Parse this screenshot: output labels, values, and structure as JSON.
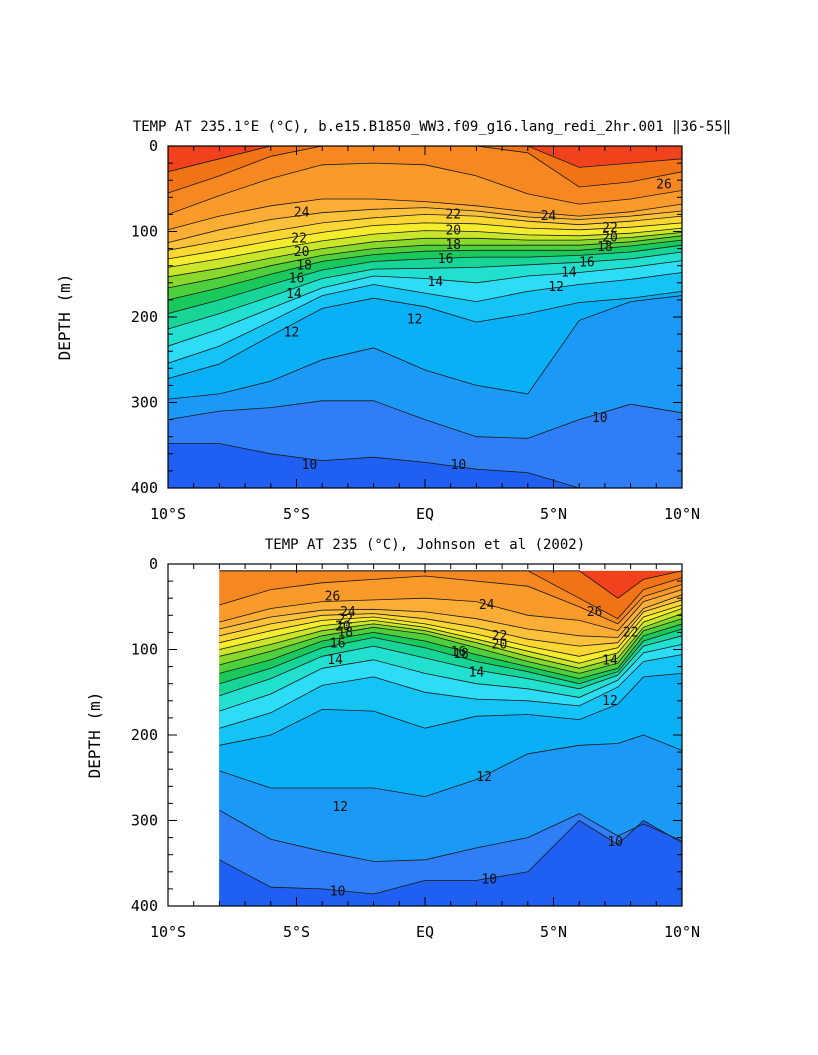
{
  "chart_data": [
    {
      "type": "heatmap",
      "subtype": "filled-contour depth section",
      "title": "TEMP AT 235.1°E (°C), b.e15.B1850_WW3.f09_g16.lang_redi_2hr.001 ‖36-55‖",
      "xlabel": "",
      "ylabel": "DEPTH (m)",
      "x_ticks": [
        "10°S",
        "5°S",
        "EQ",
        "5°N",
        "10°N"
      ],
      "x_tick_values": [
        -10,
        -5,
        0,
        5,
        10
      ],
      "xlim": [
        -10,
        10
      ],
      "y_ticks": [
        "0",
        "100",
        "200",
        "300",
        "400"
      ],
      "y_tick_values": [
        0,
        100,
        200,
        300,
        400
      ],
      "ylim": [
        0,
        400
      ],
      "y_inverted": true,
      "data_start_lat": -10,
      "contour_levels": [
        9,
        10,
        11,
        12,
        13,
        14,
        15,
        16,
        17,
        18,
        19,
        20,
        21,
        22,
        23,
        24,
        25,
        26,
        27
      ],
      "contour_labels": [
        {
          "text": "26",
          "x": 9.3,
          "y": 45
        },
        {
          "text": "24",
          "x": -4.8,
          "y": 78
        },
        {
          "text": "24",
          "x": 4.8,
          "y": 82
        },
        {
          "text": "22",
          "x": -4.9,
          "y": 108
        },
        {
          "text": "22",
          "x": 1.1,
          "y": 80
        },
        {
          "text": "22",
          "x": 7.2,
          "y": 96
        },
        {
          "text": "20",
          "x": -4.8,
          "y": 124
        },
        {
          "text": "20",
          "x": 1.1,
          "y": 99
        },
        {
          "text": "20",
          "x": 7.2,
          "y": 107
        },
        {
          "text": "18",
          "x": -4.7,
          "y": 140
        },
        {
          "text": "18",
          "x": 1.1,
          "y": 116
        },
        {
          "text": "18",
          "x": 7.0,
          "y": 118
        },
        {
          "text": "16",
          "x": -5.0,
          "y": 155
        },
        {
          "text": "16",
          "x": 0.8,
          "y": 132
        },
        {
          "text": "16",
          "x": 6.3,
          "y": 136
        },
        {
          "text": "14",
          "x": -5.1,
          "y": 173
        },
        {
          "text": "14",
          "x": 0.4,
          "y": 159
        },
        {
          "text": "14",
          "x": 5.6,
          "y": 148
        },
        {
          "text": "12",
          "x": -5.2,
          "y": 218
        },
        {
          "text": "12",
          "x": -0.4,
          "y": 203
        },
        {
          "text": "12",
          "x": 5.1,
          "y": 165
        },
        {
          "text": "10",
          "x": -4.5,
          "y": 373
        },
        {
          "text": "10",
          "x": 1.3,
          "y": 373
        },
        {
          "text": "10",
          "x": 6.8,
          "y": 318
        }
      ],
      "isotherm_depths": {
        "lat": [
          -10,
          -8,
          -6,
          -4,
          -2,
          0,
          2,
          4,
          6,
          8,
          10
        ],
        "27": [
          30,
          15,
          0,
          0,
          0,
          0,
          0,
          0,
          25,
          20,
          15
        ],
        "26": [
          55,
          35,
          12,
          0,
          0,
          0,
          0,
          8,
          48,
          42,
          30
        ],
        "25": [
          80,
          58,
          38,
          22,
          20,
          22,
          35,
          56,
          68,
          62,
          52
        ],
        "24": [
          98,
          82,
          70,
          62,
          62,
          65,
          70,
          77,
          82,
          77,
          68
        ],
        "23": [
          113,
          98,
          86,
          78,
          74,
          72,
          76,
          83,
          86,
          82,
          76
        ],
        "22": [
          122,
          111,
          100,
          90,
          84,
          80,
          82,
          88,
          92,
          88,
          82
        ],
        "21": [
          132,
          122,
          111,
          101,
          93,
          90,
          91,
          96,
          98,
          95,
          90
        ],
        "20": [
          142,
          132,
          121,
          111,
          103,
          99,
          100,
          104,
          105,
          102,
          96
        ],
        "19": [
          153,
          143,
          131,
          120,
          112,
          108,
          108,
          110,
          110,
          107,
          101
        ],
        "18": [
          166,
          154,
          140,
          128,
          120,
          116,
          116,
          116,
          116,
          112,
          105
        ],
        "17": [
          180,
          166,
          150,
          135,
          127,
          123,
          122,
          122,
          122,
          117,
          110
        ],
        "16": [
          196,
          180,
          162,
          145,
          135,
          132,
          130,
          130,
          128,
          124,
          116
        ],
        "15": [
          214,
          196,
          176,
          155,
          144,
          143,
          142,
          139,
          136,
          132,
          124
        ],
        "14": [
          234,
          214,
          190,
          166,
          152,
          155,
          160,
          152,
          148,
          142,
          134
        ],
        "13": [
          254,
          234,
          205,
          175,
          162,
          172,
          182,
          170,
          162,
          156,
          148
        ],
        "12": [
          272,
          255,
          222,
          190,
          178,
          188,
          206,
          196,
          183,
          178,
          170
        ],
        "11": [
          296,
          290,
          275,
          250,
          236,
          262,
          280,
          290,
          204,
          182,
          175
        ],
        "10": [
          320,
          310,
          306,
          298,
          298,
          320,
          340,
          342,
          320,
          302,
          312
        ],
        "9": [
          348,
          348,
          360,
          368,
          364,
          370,
          378,
          382,
          400,
          400,
          400
        ]
      }
    },
    {
      "type": "heatmap",
      "subtype": "filled-contour depth section",
      "title": "TEMP AT 235 (°C), Johnson et al (2002)",
      "xlabel": "",
      "ylabel": "DEPTH (m)",
      "x_ticks": [
        "10°S",
        "5°S",
        "EQ",
        "5°N",
        "10°N"
      ],
      "x_tick_values": [
        -10,
        -5,
        0,
        5,
        10
      ],
      "xlim": [
        -10,
        10
      ],
      "y_ticks": [
        "0",
        "100",
        "200",
        "300",
        "400"
      ],
      "y_tick_values": [
        0,
        100,
        200,
        300,
        400
      ],
      "ylim": [
        0,
        400
      ],
      "y_inverted": true,
      "data_start_lat": -8,
      "data_top_depth": 8,
      "contour_levels": [
        9,
        10,
        11,
        12,
        13,
        14,
        15,
        16,
        17,
        18,
        19,
        20,
        21,
        22,
        23,
        24,
        25,
        26,
        27
      ],
      "contour_labels": [
        {
          "text": "26",
          "x": -3.6,
          "y": 38
        },
        {
          "text": "24",
          "x": -3.0,
          "y": 56
        },
        {
          "text": "24",
          "x": 2.4,
          "y": 48
        },
        {
          "text": "22",
          "x": -3.1,
          "y": 65
        },
        {
          "text": "22",
          "x": 2.9,
          "y": 84
        },
        {
          "text": "20",
          "x": -3.2,
          "y": 73
        },
        {
          "text": "20",
          "x": 2.9,
          "y": 94
        },
        {
          "text": "18",
          "x": -3.1,
          "y": 80
        },
        {
          "text": "18",
          "x": 1.4,
          "y": 105
        },
        {
          "text": "16",
          "x": 1.3,
          "y": 103
        },
        {
          "text": "16",
          "x": -3.4,
          "y": 93
        },
        {
          "text": "14",
          "x": -3.5,
          "y": 112
        },
        {
          "text": "14",
          "x": 2.0,
          "y": 127
        },
        {
          "text": "14",
          "x": 7.2,
          "y": 113
        },
        {
          "text": "12",
          "x": 7.2,
          "y": 160
        },
        {
          "text": "12",
          "x": 2.3,
          "y": 249
        },
        {
          "text": "12",
          "x": -3.3,
          "y": 284
        },
        {
          "text": "10",
          "x": -3.4,
          "y": 383
        },
        {
          "text": "10",
          "x": 2.5,
          "y": 369
        },
        {
          "text": "10",
          "x": 7.4,
          "y": 325
        },
        {
          "text": "26",
          "x": 6.6,
          "y": 56
        },
        {
          "text": "22",
          "x": 8.0,
          "y": 80
        }
      ],
      "isotherm_depths": {
        "lat": [
          -8,
          -6,
          -4,
          -2,
          0,
          2,
          4,
          6,
          7.5,
          8.5,
          10
        ],
        "27": [
          0,
          0,
          0,
          0,
          0,
          0,
          0,
          8,
          40,
          18,
          8
        ],
        "26": [
          0,
          0,
          0,
          0,
          0,
          0,
          0,
          40,
          64,
          30,
          16
        ],
        "25": [
          48,
          30,
          22,
          18,
          14,
          20,
          26,
          50,
          70,
          38,
          24
        ],
        "24": [
          68,
          52,
          44,
          42,
          40,
          44,
          60,
          66,
          78,
          44,
          30
        ],
        "23": [
          76,
          62,
          54,
          53,
          56,
          64,
          76,
          84,
          86,
          52,
          36
        ],
        "22": [
          84,
          70,
          60,
          58,
          64,
          74,
          88,
          96,
          92,
          56,
          42
        ],
        "21": [
          92,
          78,
          66,
          62,
          70,
          82,
          96,
          108,
          98,
          62,
          48
        ],
        "20": [
          100,
          86,
          72,
          66,
          74,
          88,
          102,
          116,
          104,
          68,
          52
        ],
        "19": [
          108,
          94,
          78,
          70,
          78,
          92,
          108,
          122,
          110,
          74,
          58
        ],
        "18": [
          118,
          102,
          84,
          74,
          82,
          98,
          114,
          128,
          116,
          78,
          64
        ],
        "17": [
          128,
          112,
          90,
          80,
          90,
          106,
          120,
          134,
          122,
          84,
          70
        ],
        "16": [
          140,
          122,
          98,
          86,
          98,
          114,
          126,
          140,
          126,
          90,
          76
        ],
        "15": [
          154,
          134,
          108,
          96,
          110,
          124,
          134,
          146,
          130,
          96,
          84
        ],
        "14": [
          172,
          152,
          122,
          112,
          128,
          140,
          146,
          156,
          136,
          104,
          94
        ],
        "13": [
          192,
          174,
          142,
          132,
          150,
          158,
          160,
          166,
          144,
          114,
          106
        ],
        "12": [
          212,
          200,
          170,
          172,
          192,
          178,
          176,
          182,
          164,
          132,
          128
        ],
        "11": [
          242,
          262,
          262,
          262,
          272,
          252,
          222,
          212,
          210,
          200,
          218
        ],
        "10": [
          288,
          322,
          336,
          348,
          346,
          332,
          320,
          292,
          318,
          304,
          324
        ],
        "9": [
          346,
          378,
          380,
          386,
          370,
          370,
          360,
          300,
          328,
          300,
          326
        ]
      }
    }
  ]
}
